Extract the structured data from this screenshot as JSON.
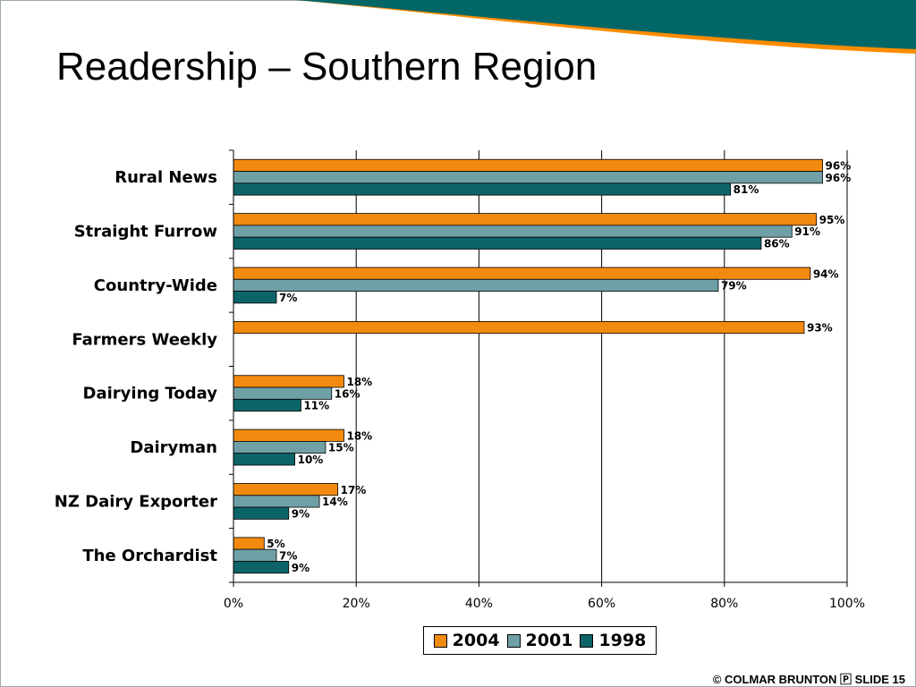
{
  "slide": {
    "title": "Readership – Southern Region",
    "footer": "© COLMAR BRUNTON 🄿 SLIDE 15"
  },
  "colors": {
    "teal": "#006666",
    "orange": "#ff8c00",
    "series_2004": "#f28a10",
    "series_2001": "#6fa0a6",
    "series_1998": "#0d6468"
  },
  "chart_data": {
    "type": "bar",
    "orientation": "horizontal",
    "categories": [
      "Rural News",
      "Straight Furrow",
      "Country-Wide",
      "Farmers Weekly",
      "Dairying Today",
      "Dairyman",
      "NZ Dairy Exporter",
      "The Orchardist"
    ],
    "series": [
      {
        "name": "2004",
        "values": [
          96,
          95,
          94,
          93,
          18,
          18,
          17,
          5
        ],
        "labels": [
          "96%",
          "95%",
          "94%",
          "93%",
          "18%",
          "18%",
          "17%",
          "5%"
        ]
      },
      {
        "name": "2001",
        "values": [
          96,
          91,
          79,
          null,
          16,
          15,
          14,
          7
        ],
        "labels": [
          "96%",
          "91%",
          "79%",
          "",
          "16%",
          "15%",
          "14%",
          "7%"
        ]
      },
      {
        "name": "1998",
        "values": [
          81,
          86,
          7,
          null,
          11,
          10,
          9,
          9
        ],
        "labels": [
          "81%",
          "86%",
          "7%",
          "",
          "11%",
          "10%",
          "9%",
          "9%"
        ]
      }
    ],
    "x_ticks": [
      "0%",
      "20%",
      "40%",
      "60%",
      "80%",
      "100%"
    ],
    "xlim": [
      0,
      100
    ],
    "grid": true,
    "legend": "bottom"
  }
}
